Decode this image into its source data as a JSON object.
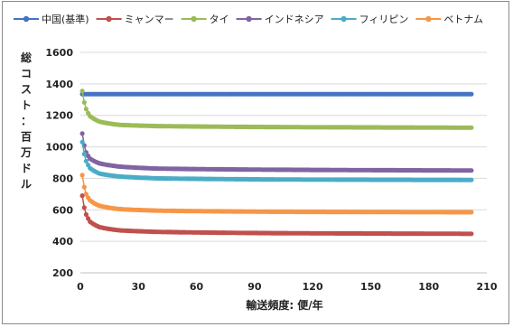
{
  "chart_data": {
    "type": "line",
    "title": "",
    "xlabel": "輸送頻度: 便/年",
    "ylabel": "総コスト：百万ドル",
    "xlim": [
      0,
      210
    ],
    "ylim": [
      200,
      1600
    ],
    "x_ticks": [
      "0",
      "30",
      "60",
      "90",
      "120",
      "150",
      "180",
      "210"
    ],
    "y_ticks": [
      "200",
      "400",
      "600",
      "800",
      "1000",
      "1200",
      "1400",
      "1600"
    ],
    "grid": {
      "horizontal": true,
      "vertical": false
    },
    "legend_position": "top",
    "x_range_plotted": [
      1,
      202
    ],
    "series": [
      {
        "name": "中国(基準)",
        "color": "#4472C4",
        "values_at": {
          "1": 1335,
          "5": 1335,
          "20": 1335,
          "50": 1335,
          "100": 1335,
          "202": 1335
        }
      },
      {
        "name": "ミャンマー",
        "color": "#C0504D",
        "values_at": {
          "1": 690,
          "3": 570,
          "5": 525,
          "10": 490,
          "20": 470,
          "40": 460,
          "100": 452,
          "202": 448
        }
      },
      {
        "name": "タイ",
        "color": "#9BBB59",
        "values_at": {
          "1": 1355,
          "3": 1240,
          "5": 1195,
          "10": 1160,
          "20": 1140,
          "40": 1132,
          "100": 1126,
          "202": 1122
        }
      },
      {
        "name": "インドネシア",
        "color": "#8064A2",
        "values_at": {
          "1": 1085,
          "3": 965,
          "5": 925,
          "10": 895,
          "20": 875,
          "40": 862,
          "100": 855,
          "202": 850
        }
      },
      {
        "name": "フィリピン",
        "color": "#4BACC6",
        "values_at": {
          "1": 1030,
          "3": 910,
          "5": 865,
          "10": 830,
          "20": 812,
          "40": 800,
          "100": 793,
          "202": 790
        }
      },
      {
        "name": "ベトナム",
        "color": "#F79646",
        "values_at": {
          "1": 820,
          "3": 700,
          "5": 660,
          "10": 625,
          "20": 605,
          "40": 595,
          "100": 588,
          "202": 585
        }
      }
    ]
  }
}
